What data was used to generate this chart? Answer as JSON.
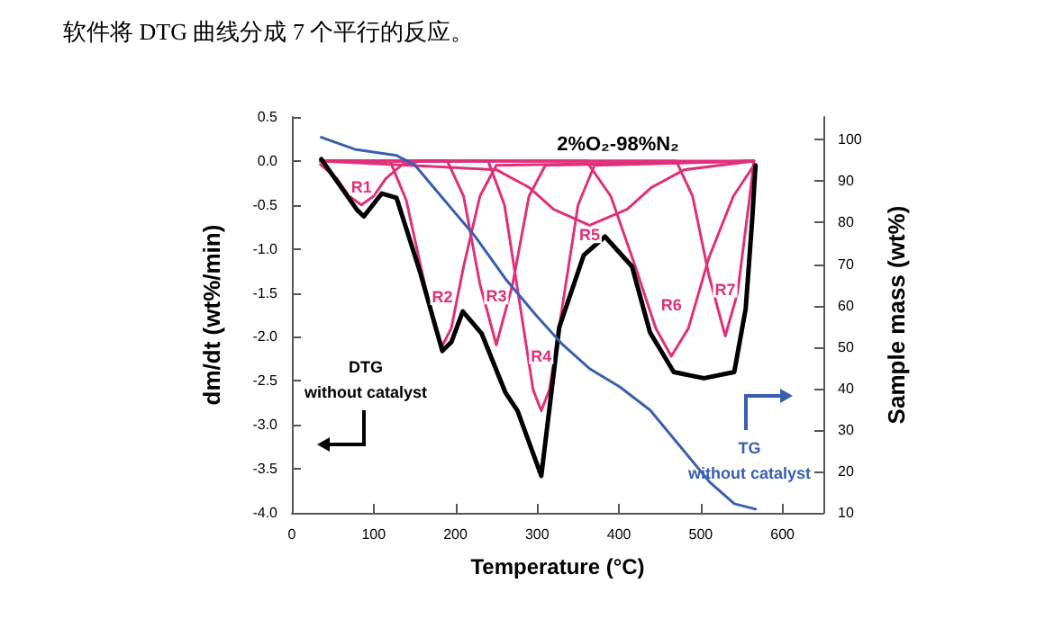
{
  "chart_data": {
    "type": "line",
    "title": "软件将 DTG 曲线分成 7 个平行的反应。",
    "subtitle": "2%O₂-98%N₂",
    "xlabel": "Temperature (°C)",
    "ylabel": "dm/dt (wt%/min)",
    "y2label": "Sample mass (wt%)",
    "xlim": [
      0,
      650
    ],
    "xticks": [
      0,
      100,
      200,
      300,
      400,
      500,
      600
    ],
    "ylim": [
      -4,
      0.5
    ],
    "yticks": [
      {
        "value": 0.5,
        "label": "0.5"
      },
      {
        "value": 0,
        "label": "0.0"
      },
      {
        "value": -0.5,
        "label": "-0.5"
      },
      {
        "value": -1,
        "label": "-1.0"
      },
      {
        "value": -1.5,
        "label": "-1.5"
      },
      {
        "value": -2,
        "label": "-2.0"
      },
      {
        "value": -2.5,
        "label": "-2.5"
      },
      {
        "value": -3,
        "label": "-3.0"
      },
      {
        "value": -3.5,
        "label": "-3.5"
      },
      {
        "value": -4,
        "label": "-4.0"
      }
    ],
    "y2lim": [
      10,
      105.5
    ],
    "y2ticks": [
      10,
      20,
      30,
      40,
      50,
      60,
      70,
      80,
      90,
      100
    ],
    "grid": false,
    "marker": "none",
    "line_style": "solid",
    "series": [
      {
        "name": "R1",
        "color": "#e0307a",
        "x": [
          35,
          55,
          70,
          85,
          100,
          115,
          135,
          160,
          565
        ],
        "values": [
          -0.04,
          -0.2,
          -0.4,
          -0.5,
          -0.4,
          -0.2,
          -0.04,
          0,
          0
        ]
      },
      {
        "name": "R2",
        "color": "#e0307a",
        "x": [
          35,
          120,
          140,
          160,
          175,
          184,
          195,
          210,
          230,
          250,
          565
        ],
        "values": [
          0,
          0,
          -0.45,
          -1.3,
          -1.9,
          -2.1,
          -1.9,
          -1.2,
          -0.4,
          -0.05,
          0
        ]
      },
      {
        "name": "R3",
        "color": "#e0307a",
        "x": [
          35,
          190,
          210,
          230,
          250,
          270,
          290,
          310,
          565
        ],
        "values": [
          0,
          0,
          -0.4,
          -1.4,
          -2.09,
          -1.4,
          -0.4,
          -0.05,
          0
        ]
      },
      {
        "name": "R4",
        "color": "#e0307a",
        "x": [
          35,
          240,
          260,
          280,
          295,
          305,
          315,
          330,
          350,
          370,
          565
        ],
        "values": [
          0,
          0,
          -0.5,
          -1.7,
          -2.6,
          -2.84,
          -2.6,
          -1.7,
          -0.5,
          -0.05,
          0
        ]
      },
      {
        "name": "R5",
        "color": "#e0307a",
        "x": [
          35,
          250,
          290,
          320,
          364,
          410,
          440,
          480,
          565
        ],
        "values": [
          0,
          -0.1,
          -0.3,
          -0.55,
          -0.73,
          -0.55,
          -0.3,
          -0.1,
          0
        ]
      },
      {
        "name": "R6",
        "color": "#e0307a",
        "x": [
          35,
          360,
          390,
          420,
          445,
          464,
          485,
          510,
          540,
          565
        ],
        "values": [
          0,
          0,
          -0.4,
          -1.2,
          -1.9,
          -2.22,
          -1.9,
          -1.1,
          -0.4,
          -0.05
        ]
      },
      {
        "name": "R7",
        "color": "#e0307a",
        "x": [
          35,
          470,
          490,
          510,
          530,
          545,
          560,
          565
        ],
        "values": [
          0,
          0,
          -0.4,
          -1.3,
          -1.99,
          -1.5,
          -0.4,
          0
        ]
      },
      {
        "color": "#000000",
        "x": [
          36,
          80,
          88,
          110,
          128,
          157,
          184,
          195,
          209,
          232,
          261,
          276,
          305,
          327,
          357,
          383,
          416,
          438,
          467,
          504,
          541,
          555,
          563,
          567
        ],
        "values": [
          0.02,
          -0.56,
          -0.63,
          -0.37,
          -0.42,
          -1.27,
          -2.16,
          -2.06,
          -1.71,
          -1.96,
          -2.63,
          -2.84,
          -3.58,
          -1.89,
          -1.07,
          -0.86,
          -1.2,
          -1.95,
          -2.4,
          -2.47,
          -2.4,
          -1.68,
          -0.66,
          -0.05
        ]
      },
      {
        "color": "#3a5fb0",
        "axis": "y2",
        "x": [
          36,
          77,
          128,
          150,
          187,
          224,
          261,
          298,
          331,
          364,
          401,
          438,
          475,
          511,
          541,
          567
        ],
        "values": [
          100.6,
          97.7,
          96.2,
          94,
          85.3,
          76.7,
          66.5,
          57.8,
          50.6,
          44.8,
          40.4,
          34.8,
          26,
          17.4,
          12.2,
          10.9
        ]
      }
    ],
    "annotations": [
      "DTG\nwithout catalyst",
      "TG\nwithout catalyst"
    ]
  }
}
